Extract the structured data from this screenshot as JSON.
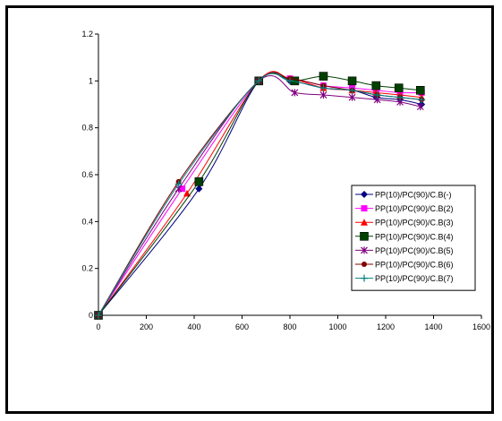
{
  "chart_data": {
    "type": "line",
    "title": "",
    "xlabel": "",
    "ylabel": "",
    "xlim": [
      0,
      1600
    ],
    "ylim": [
      0,
      1.2
    ],
    "xticks": [
      0,
      200,
      400,
      600,
      800,
      1000,
      1200,
      1400,
      1600
    ],
    "yticks": [
      0,
      0.2,
      0.4,
      0.6,
      0.8,
      1,
      1.2
    ],
    "grid": false,
    "legend_position": "right",
    "series": [
      {
        "name": "PP(10)/PC(90)/C.B(-)",
        "color": "#000080",
        "marker": "diamond",
        "x": [
          0,
          420,
          670,
          800,
          940,
          1060,
          1160,
          1260,
          1350
        ],
        "y": [
          0,
          0.54,
          1.0,
          1.0,
          0.97,
          0.96,
          0.93,
          0.92,
          0.9
        ]
      },
      {
        "name": "PP(10)/PC(90)/C.B(2)",
        "color": "#ff00ff",
        "marker": "square",
        "x": [
          0,
          350,
          670,
          800,
          940,
          1060,
          1160,
          1260,
          1350
        ],
        "y": [
          0,
          0.54,
          1.0,
          1.01,
          0.98,
          0.97,
          0.96,
          0.95,
          0.95
        ]
      },
      {
        "name": "PP(10)/PC(90)/C.B(3)",
        "color": "#ff0000",
        "marker": "triangle",
        "x": [
          0,
          370,
          670,
          800,
          940,
          1060,
          1160,
          1260,
          1350
        ],
        "y": [
          0,
          0.52,
          1.0,
          1.01,
          0.97,
          0.96,
          0.95,
          0.94,
          0.93
        ]
      },
      {
        "name": "PP(10)/PC(90)/C.B(4)",
        "color": "#004000",
        "marker": "bigsquare",
        "x": [
          0,
          420,
          670,
          820,
          940,
          1060,
          1160,
          1255,
          1345
        ],
        "y": [
          0,
          0.57,
          1.0,
          1.0,
          1.02,
          1.0,
          0.98,
          0.97,
          0.96
        ]
      },
      {
        "name": "PP(10)/PC(90)/C.B(5)",
        "color": "#800080",
        "marker": "asterisk",
        "x": [
          0,
          335,
          670,
          820,
          940,
          1060,
          1165,
          1260,
          1345
        ],
        "y": [
          0,
          0.54,
          1.0,
          0.95,
          0.94,
          0.93,
          0.92,
          0.91,
          0.89
        ]
      },
      {
        "name": "PP(10)/PC(90)/C.B(6)",
        "color": "#800000",
        "marker": "circle",
        "x": [
          0,
          335,
          670,
          800,
          940,
          1060,
          1165,
          1260,
          1350
        ],
        "y": [
          0,
          0.57,
          1.0,
          1.01,
          0.98,
          0.96,
          0.94,
          0.93,
          0.92
        ]
      },
      {
        "name": "PP(10)/PC(90)/C.B(7)",
        "color": "#008080",
        "marker": "plus",
        "x": [
          0,
          335,
          670,
          800,
          940,
          1060,
          1165,
          1260,
          1350
        ],
        "y": [
          0,
          0.56,
          1.0,
          1.0,
          0.97,
          0.96,
          0.94,
          0.93,
          0.92
        ]
      }
    ]
  }
}
